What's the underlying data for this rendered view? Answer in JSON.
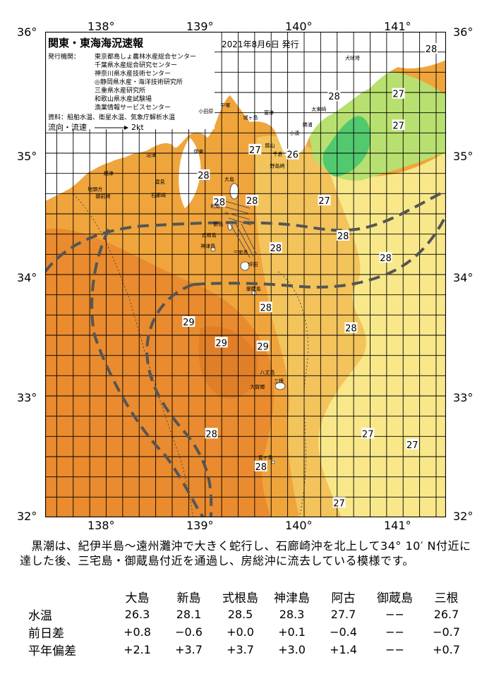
{
  "header": {
    "title": "関東・東海海況速報",
    "date": "2021年8月6日 発行",
    "issuer_label": "発行機関：",
    "issuers": [
      "東京都島しょ農林水産総合センター",
      "千葉県水産総合研究センター",
      "神奈川県水産技術センター",
      "◎静岡県水産・海洋技術研究所",
      "三重県水産研究所",
      "和歌山県水産試験場",
      "漁業情報サービスセンター"
    ],
    "source": "資料：船舶水温、衛星水温、気象庁解析水温",
    "flow_legend": "流向・流速",
    "flow_scale": "2kt"
  },
  "axes": {
    "longitudes": [
      "138°",
      "139°",
      "140°",
      "141°"
    ],
    "latitudes": [
      "36°",
      "35°",
      "34°",
      "33°",
      "32°"
    ]
  },
  "map": {
    "colors": {
      "land": "#ffffff",
      "sea_warm": "#f0a53c",
      "sea_warmer": "#e98b2e",
      "sea_mid": "#f3c35c",
      "sea_cool": "#f8e88a",
      "sea_cold": "#b8e070",
      "sea_coldest": "#52c96f",
      "kuroshio_path": "#555555"
    },
    "temperature_labels": [
      {
        "text": "28",
        "lon": 141.45,
        "lat": 35.86
      },
      {
        "text": "28",
        "lon": 140.47,
        "lat": 35.47
      },
      {
        "text": "27",
        "lon": 141.12,
        "lat": 35.49
      },
      {
        "text": "27",
        "lon": 141.12,
        "lat": 35.23
      },
      {
        "text": "27",
        "lon": 139.67,
        "lat": 35.03
      },
      {
        "text": "26",
        "lon": 140.05,
        "lat": 34.99
      },
      {
        "text": "28",
        "lon": 139.15,
        "lat": 34.82
      },
      {
        "text": "28",
        "lon": 139.31,
        "lat": 34.6
      },
      {
        "text": "27",
        "lon": 140.37,
        "lat": 34.61
      },
      {
        "text": "28",
        "lon": 139.64,
        "lat": 34.61
      },
      {
        "text": "28",
        "lon": 140.56,
        "lat": 34.32
      },
      {
        "text": "28",
        "lon": 139.88,
        "lat": 34.22
      },
      {
        "text": "28",
        "lon": 140.99,
        "lat": 34.14
      },
      {
        "text": "28",
        "lon": 139.78,
        "lat": 33.73
      },
      {
        "text": "29",
        "lon": 139.0,
        "lat": 33.61
      },
      {
        "text": "28",
        "lon": 140.64,
        "lat": 33.56
      },
      {
        "text": "29",
        "lon": 139.33,
        "lat": 33.44
      },
      {
        "text": "29",
        "lon": 139.75,
        "lat": 33.41
      },
      {
        "text": "28",
        "lon": 139.23,
        "lat": 32.69
      },
      {
        "text": "27",
        "lon": 140.81,
        "lat": 32.69
      },
      {
        "text": "27",
        "lon": 141.26,
        "lat": 32.6
      },
      {
        "text": "28",
        "lon": 139.73,
        "lat": 32.42
      },
      {
        "text": "27",
        "lon": 140.52,
        "lat": 32.12
      }
    ],
    "place_names": [
      {
        "text": "犬吠埼",
        "lon": 140.58,
        "lat": 35.77
      },
      {
        "text": "太東崎",
        "lon": 140.24,
        "lat": 35.35
      },
      {
        "text": "勝浦",
        "lon": 140.15,
        "lat": 35.22
      },
      {
        "text": "小湊",
        "lon": 140.02,
        "lat": 35.15
      },
      {
        "text": "館山",
        "lon": 139.77,
        "lat": 35.05
      },
      {
        "text": "千倉",
        "lon": 139.85,
        "lat": 34.98
      },
      {
        "text": "野島崎",
        "lon": 139.82,
        "lat": 34.88
      },
      {
        "text": "平塚",
        "lon": 139.32,
        "lat": 35.38
      },
      {
        "text": "小田原",
        "lon": 139.1,
        "lat": 35.33
      },
      {
        "text": "城ヶ島",
        "lon": 139.55,
        "lat": 35.28
      },
      {
        "text": "富津",
        "lon": 139.76,
        "lat": 35.32
      },
      {
        "text": "伊東",
        "lon": 139.05,
        "lat": 35.0
      },
      {
        "text": "大島",
        "lon": 139.36,
        "lat": 34.77
      },
      {
        "text": "利島",
        "lon": 139.22,
        "lat": 34.55
      },
      {
        "text": "新島",
        "lon": 139.25,
        "lat": 34.4
      },
      {
        "text": "式根島",
        "lon": 139.13,
        "lat": 34.31
      },
      {
        "text": "神津島",
        "lon": 139.12,
        "lat": 34.22
      },
      {
        "text": "三宅島",
        "lon": 139.45,
        "lat": 34.17
      },
      {
        "text": "坪田",
        "lon": 139.6,
        "lat": 34.07
      },
      {
        "text": "御蔵島",
        "lon": 139.58,
        "lat": 33.87
      },
      {
        "text": "八丈島",
        "lon": 139.72,
        "lat": 33.18
      },
      {
        "text": "三根",
        "lon": 139.86,
        "lat": 33.11
      },
      {
        "text": "大賀郷",
        "lon": 139.62,
        "lat": 33.06
      },
      {
        "text": "青ヶ島",
        "lon": 139.7,
        "lat": 32.48
      },
      {
        "text": "沼津",
        "lon": 138.57,
        "lat": 34.97
      },
      {
        "text": "焼津",
        "lon": 138.14,
        "lat": 34.82
      },
      {
        "text": "雲見",
        "lon": 138.66,
        "lat": 34.75
      },
      {
        "text": "石廊崎",
        "lon": 138.62,
        "lat": 34.64
      },
      {
        "text": "地頭方",
        "lon": 137.98,
        "lat": 34.69
      },
      {
        "text": "御前崎",
        "lon": 138.06,
        "lat": 34.63
      }
    ],
    "contour_label": "1000"
  },
  "narrative": "　黒潮は、紀伊半島～遠州灘沖で大きく蛇行し、石廊崎沖を北上して34° 10′ N付近に達した後、三宅島・御蔵島付近を通過し、房総沖に流去している模様です。",
  "stats": {
    "columns": [
      "大島",
      "新島",
      "式根島",
      "神津島",
      "阿古",
      "御蔵島",
      "三根"
    ],
    "rows": [
      {
        "label": "水温",
        "values": [
          "26.3",
          "28.1",
          "28.5",
          "28.3",
          "27.7",
          "−−",
          "26.7"
        ]
      },
      {
        "label": "前日差",
        "values": [
          "+0.8",
          "−0.6",
          "+0.0",
          "+0.1",
          "−0.4",
          "−−",
          "−0.7"
        ]
      },
      {
        "label": "平年偏差",
        "values": [
          "+2.1",
          "+3.7",
          "+3.7",
          "+3.0",
          "+1.4",
          "−−",
          "+0.7"
        ]
      }
    ]
  }
}
